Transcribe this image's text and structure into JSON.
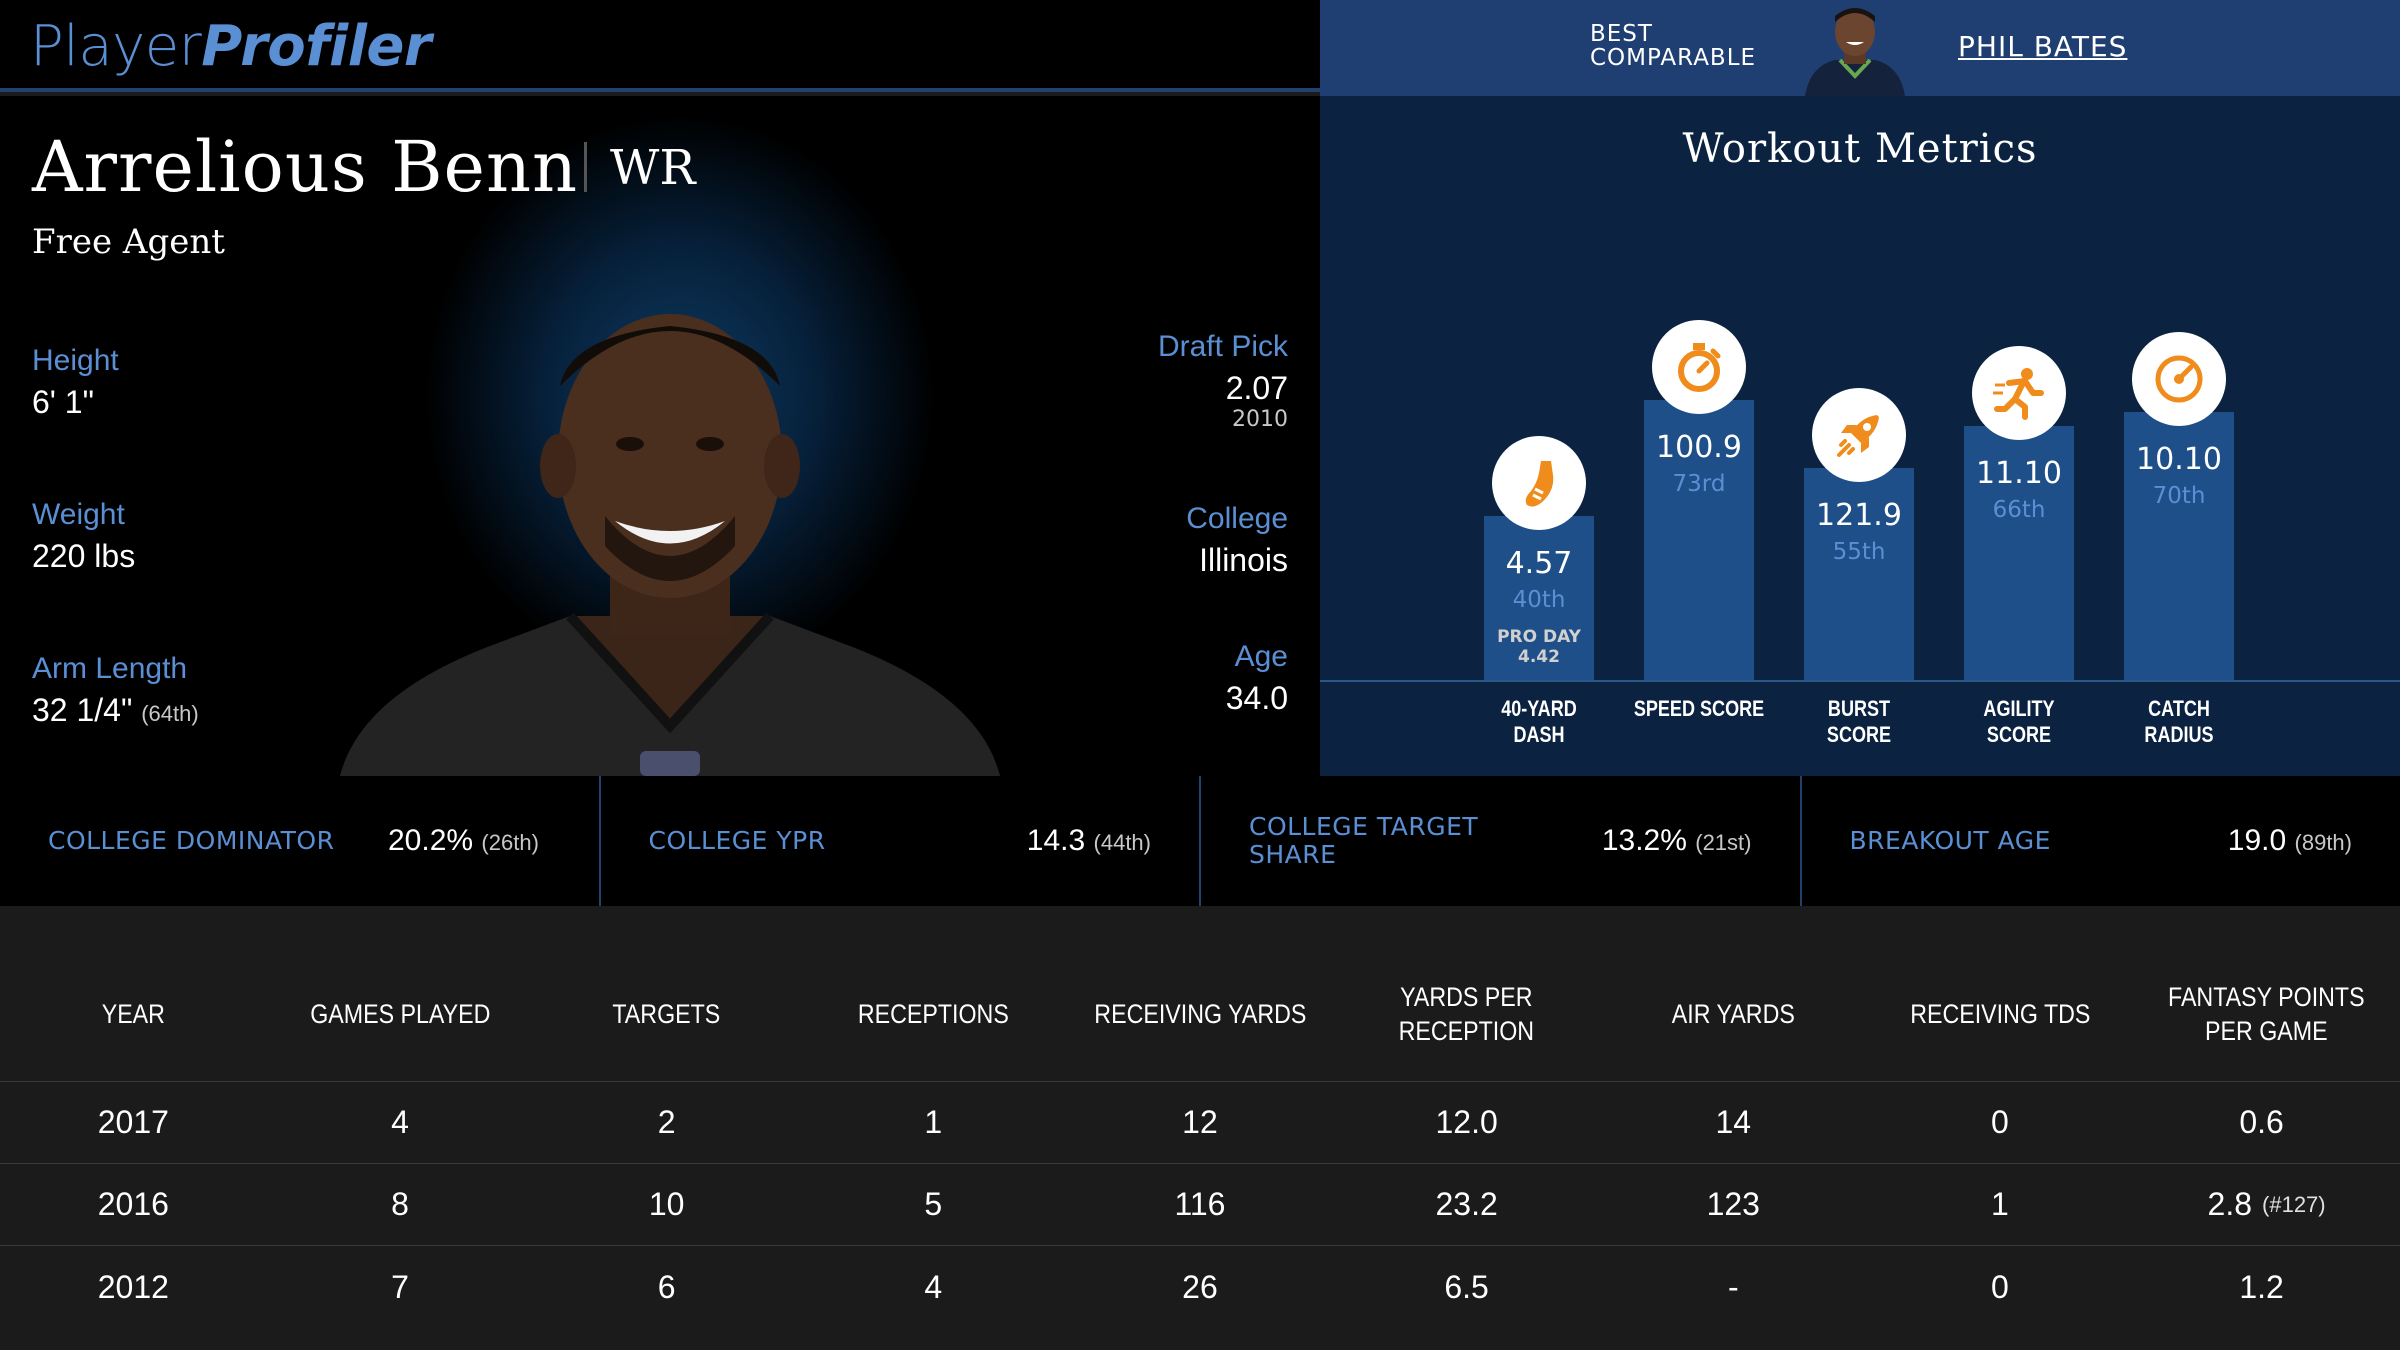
{
  "brand": {
    "part1": "Player",
    "part2": "Profiler"
  },
  "comparable": {
    "label": "BEST COMPARABLE",
    "name": "PHIL BATES"
  },
  "player": {
    "name": "Arrelious Benn",
    "position": "WR",
    "team": "Free Agent",
    "height_label": "Height",
    "height": "6' 1\"",
    "weight_label": "Weight",
    "weight": "220 lbs",
    "arm_label": "Arm Length",
    "arm": "32 1/4\"",
    "arm_rank": "(64th)",
    "draft_label": "Draft Pick",
    "draft": "2.07",
    "draft_year": "2010",
    "college_label": "College",
    "college": "Illinois",
    "age_label": "Age",
    "age": "34.0"
  },
  "workout": {
    "title": "Workout Metrics",
    "metrics": [
      {
        "label": "40-YARD DASH",
        "value": "4.57",
        "pct": "40th",
        "pro_day_label": "PRO DAY",
        "pro_day": "4.42",
        "icon": "shoe-icon"
      },
      {
        "label": "SPEED SCORE",
        "value": "100.9",
        "pct": "73rd",
        "icon": "stopwatch-icon"
      },
      {
        "label": "BURST SCORE",
        "value": "121.9",
        "pct": "55th",
        "icon": "rocket-icon"
      },
      {
        "label": "AGILITY SCORE",
        "value": "11.10",
        "pct": "66th",
        "icon": "runner-icon"
      },
      {
        "label": "CATCH RADIUS",
        "value": "10.10",
        "pct": "70th",
        "icon": "target-icon"
      }
    ],
    "accent": "#f08c1c"
  },
  "college_stats": [
    {
      "label": "COLLEGE DOMINATOR",
      "value": "20.2%",
      "rank": "(26th)"
    },
    {
      "label": "COLLEGE YPR",
      "value": "14.3",
      "rank": "(44th)"
    },
    {
      "label": "COLLEGE TARGET SHARE",
      "value": "13.2%",
      "rank": "(21st)"
    },
    {
      "label": "BREAKOUT AGE",
      "value": "19.0",
      "rank": "(89th)"
    }
  ],
  "table": {
    "headers": [
      "YEAR",
      "GAMES PLAYED",
      "TARGETS",
      "RECEPTIONS",
      "RECEIVING YARDS",
      "YARDS PER RECEPTION",
      "AIR YARDS",
      "RECEIVING TDS",
      "FANTASY POINTS PER GAME"
    ],
    "rows": [
      [
        "2017",
        "4",
        "2",
        "1",
        "12",
        "12.0",
        "14",
        "0",
        "0.6",
        ""
      ],
      [
        "2016",
        "8",
        "10",
        "5",
        "116",
        "23.2",
        "123",
        "1",
        "2.8",
        "(#127)"
      ],
      [
        "2012",
        "7",
        "6",
        "4",
        "26",
        "6.5",
        "-",
        "0",
        "1.2",
        ""
      ]
    ]
  },
  "colors": {
    "brand_blue": "#5b8fd4",
    "panel_blue": "#1f3f72",
    "bar_blue": "#1f4f89"
  }
}
